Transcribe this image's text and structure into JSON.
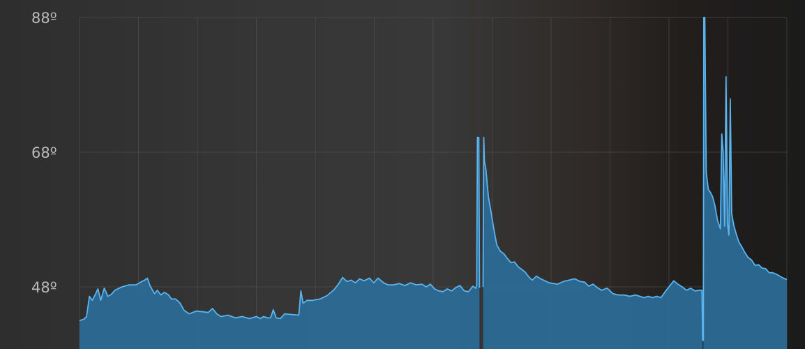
{
  "chart_data": {
    "type": "area",
    "ylim": [
      40,
      88
    ],
    "yticks": [
      {
        "value": 88,
        "label": "88º"
      },
      {
        "value": 68,
        "label": "68º"
      },
      {
        "value": 48,
        "label": "48º"
      }
    ],
    "x_range": [
      0,
      1
    ],
    "vertical_gridlines": 12,
    "line_color": "#5ab4ef",
    "fill_color": "#2b6a95",
    "gridline_color": "#555555",
    "gap_color": "#333333",
    "series": [
      {
        "segments": [
          [
            [
              0.0,
              43.0
            ],
            [
              0.006,
              43.2
            ],
            [
              0.01,
              43.6
            ],
            [
              0.014,
              46.6
            ],
            [
              0.018,
              46.0
            ],
            [
              0.022,
              46.8
            ],
            [
              0.026,
              47.7
            ],
            [
              0.03,
              46.0
            ],
            [
              0.035,
              47.8
            ],
            [
              0.04,
              46.6
            ],
            [
              0.045,
              46.9
            ],
            [
              0.05,
              47.5
            ],
            [
              0.06,
              48.0
            ],
            [
              0.07,
              48.3
            ],
            [
              0.08,
              48.3
            ],
            [
              0.088,
              48.8
            ],
            [
              0.092,
              49.0
            ],
            [
              0.096,
              49.3
            ],
            [
              0.1,
              48.1
            ],
            [
              0.106,
              47.0
            ],
            [
              0.11,
              47.5
            ],
            [
              0.115,
              46.8
            ],
            [
              0.12,
              47.2
            ],
            [
              0.126,
              46.8
            ],
            [
              0.13,
              46.2
            ],
            [
              0.136,
              46.2
            ],
            [
              0.142,
              45.6
            ],
            [
              0.148,
              44.5
            ],
            [
              0.155,
              44.0
            ],
            [
              0.165,
              44.4
            ],
            [
              0.175,
              44.3
            ],
            [
              0.182,
              44.2
            ],
            [
              0.188,
              44.8
            ],
            [
              0.194,
              44.0
            ],
            [
              0.2,
              43.6
            ],
            [
              0.21,
              43.8
            ],
            [
              0.22,
              43.4
            ],
            [
              0.23,
              43.6
            ],
            [
              0.24,
              43.3
            ],
            [
              0.25,
              43.6
            ],
            [
              0.256,
              43.3
            ],
            [
              0.26,
              43.6
            ],
            [
              0.266,
              43.4
            ],
            [
              0.27,
              43.4
            ],
            [
              0.274,
              44.6
            ],
            [
              0.278,
              43.4
            ],
            [
              0.284,
              43.3
            ],
            [
              0.29,
              44.0
            ],
            [
              0.3,
              43.9
            ],
            [
              0.31,
              43.8
            ],
            [
              0.313,
              47.4
            ],
            [
              0.316,
              45.6
            ],
            [
              0.322,
              46.0
            ],
            [
              0.33,
              46.0
            ],
            [
              0.34,
              46.2
            ],
            [
              0.35,
              46.7
            ],
            [
              0.36,
              47.6
            ],
            [
              0.366,
              48.4
            ],
            [
              0.372,
              49.4
            ],
            [
              0.378,
              48.8
            ],
            [
              0.384,
              49.0
            ],
            [
              0.39,
              48.6
            ],
            [
              0.396,
              49.2
            ],
            [
              0.402,
              48.9
            ],
            [
              0.41,
              49.3
            ],
            [
              0.416,
              48.6
            ],
            [
              0.422,
              49.3
            ],
            [
              0.43,
              48.6
            ],
            [
              0.436,
              48.3
            ],
            [
              0.444,
              48.3
            ],
            [
              0.452,
              48.5
            ],
            [
              0.46,
              48.2
            ],
            [
              0.468,
              48.6
            ],
            [
              0.476,
              48.3
            ],
            [
              0.484,
              48.4
            ],
            [
              0.49,
              48.0
            ],
            [
              0.496,
              48.4
            ],
            [
              0.502,
              47.7
            ],
            [
              0.508,
              47.4
            ],
            [
              0.514,
              47.3
            ],
            [
              0.52,
              47.7
            ],
            [
              0.526,
              47.4
            ],
            [
              0.532,
              47.9
            ],
            [
              0.538,
              48.2
            ],
            [
              0.544,
              47.4
            ],
            [
              0.55,
              47.3
            ],
            [
              0.556,
              48.1
            ],
            [
              0.56,
              47.8
            ],
            [
              0.5615,
              48.2
            ],
            [
              0.5625,
              70.2
            ],
            [
              0.5645,
              70.2
            ],
            [
              0.5655,
              47.9
            ]
          ],
          [
            [
              0.5705,
              48.0
            ],
            [
              0.5715,
              70.2
            ],
            [
              0.5725,
              66.6
            ],
            [
              0.5745,
              65.5
            ],
            [
              0.578,
              61.4
            ],
            [
              0.582,
              59.0
            ],
            [
              0.586,
              56.4
            ],
            [
              0.59,
              54.2
            ],
            [
              0.595,
              53.3
            ],
            [
              0.6,
              52.9
            ],
            [
              0.605,
              52.2
            ],
            [
              0.61,
              51.6
            ],
            [
              0.615,
              51.7
            ],
            [
              0.62,
              51.0
            ],
            [
              0.625,
              50.6
            ],
            [
              0.63,
              50.2
            ],
            [
              0.635,
              49.5
            ],
            [
              0.64,
              49.0
            ],
            [
              0.646,
              49.6
            ],
            [
              0.652,
              49.2
            ],
            [
              0.658,
              48.9
            ],
            [
              0.664,
              48.6
            ],
            [
              0.67,
              48.5
            ],
            [
              0.676,
              48.4
            ],
            [
              0.684,
              48.8
            ],
            [
              0.692,
              49.0
            ],
            [
              0.7,
              49.2
            ],
            [
              0.708,
              48.8
            ],
            [
              0.714,
              48.7
            ],
            [
              0.72,
              48.1
            ],
            [
              0.726,
              48.4
            ],
            [
              0.732,
              47.9
            ],
            [
              0.738,
              47.5
            ],
            [
              0.746,
              47.8
            ],
            [
              0.754,
              47.0
            ],
            [
              0.762,
              46.8
            ],
            [
              0.77,
              46.8
            ],
            [
              0.778,
              46.6
            ],
            [
              0.786,
              46.8
            ],
            [
              0.792,
              46.6
            ],
            [
              0.798,
              46.4
            ],
            [
              0.804,
              46.6
            ],
            [
              0.81,
              46.4
            ],
            [
              0.816,
              46.6
            ],
            [
              0.822,
              46.4
            ],
            [
              0.828,
              47.3
            ],
            [
              0.834,
              48.1
            ],
            [
              0.84,
              48.9
            ],
            [
              0.846,
              48.4
            ],
            [
              0.852,
              48.0
            ],
            [
              0.858,
              47.5
            ],
            [
              0.864,
              47.8
            ],
            [
              0.87,
              47.4
            ],
            [
              0.876,
              47.5
            ],
            [
              0.88,
              47.5
            ],
            [
              0.881,
              40.0
            ]
          ],
          [
            [
              0.882,
              40.0
            ],
            [
              0.8825,
              88.0
            ],
            [
              0.884,
              88.0
            ],
            [
              0.886,
              65.0
            ],
            [
              0.889,
              62.5
            ],
            [
              0.892,
              62.0
            ],
            [
              0.895,
              61.4
            ],
            [
              0.898,
              60.2
            ],
            [
              0.902,
              57.9
            ],
            [
              0.906,
              56.6
            ],
            [
              0.908,
              70.7
            ],
            [
              0.91,
              68.0
            ],
            [
              0.912,
              57.0
            ],
            [
              0.914,
              79.2
            ],
            [
              0.916,
              57.4
            ],
            [
              0.918,
              55.7
            ],
            [
              0.92,
              75.9
            ],
            [
              0.922,
              58.9
            ],
            [
              0.925,
              57.1
            ],
            [
              0.928,
              56.0
            ],
            [
              0.932,
              54.7
            ],
            [
              0.936,
              54.0
            ],
            [
              0.94,
              53.2
            ],
            [
              0.945,
              52.4
            ],
            [
              0.95,
              52.0
            ],
            [
              0.955,
              51.2
            ],
            [
              0.96,
              51.3
            ],
            [
              0.965,
              50.8
            ],
            [
              0.97,
              50.7
            ],
            [
              0.975,
              50.1
            ],
            [
              0.98,
              50.1
            ],
            [
              0.985,
              49.9
            ],
            [
              0.99,
              49.6
            ],
            [
              0.995,
              49.3
            ],
            [
              1.0,
              49.1
            ]
          ]
        ]
      }
    ]
  }
}
